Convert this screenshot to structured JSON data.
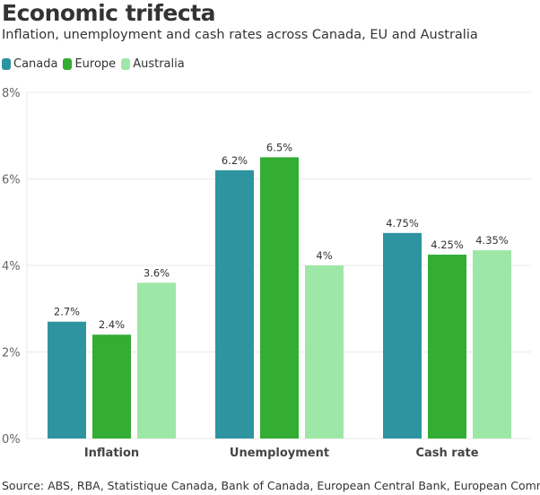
{
  "title": "Economic trifecta",
  "subtitle": "Inflation, unemployment and cash rates across Canada, EU and Australia",
  "source": "Source: ABS, RBA, Statistique Canada, Bank of Canada, European Central Bank, European Commission",
  "chart_data": {
    "type": "bar",
    "categories": [
      "Inflation",
      "Unemployment",
      "Cash rate"
    ],
    "series": [
      {
        "name": "Canada",
        "color": "#2e94a0",
        "values": [
          2.7,
          6.2,
          4.75
        ],
        "labels": [
          "2.7%",
          "6.2%",
          "4.75%"
        ]
      },
      {
        "name": "Europe",
        "color": "#33ad33",
        "values": [
          2.4,
          6.5,
          4.25
        ],
        "labels": [
          "2.4%",
          "6.5%",
          "4.25%"
        ]
      },
      {
        "name": "Australia",
        "color": "#9de8a6",
        "values": [
          3.6,
          4.0,
          4.35
        ],
        "labels": [
          "3.6%",
          "4%",
          "4.35%"
        ]
      }
    ],
    "yticks": [
      "0%",
      "2%",
      "4%",
      "6%",
      "8%"
    ],
    "ytick_values": [
      0,
      2,
      4,
      6,
      8
    ],
    "ylim": [
      0,
      8
    ],
    "grid": true,
    "legend": "top-left"
  }
}
